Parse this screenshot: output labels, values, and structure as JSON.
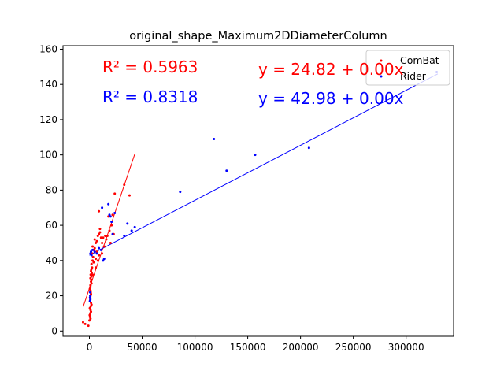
{
  "chart_data": {
    "type": "scatter",
    "title": "original_shape_Maximum2DDiameterColumn",
    "xlabel": "",
    "ylabel": "",
    "xlim": [
      -25000,
      345000
    ],
    "ylim": [
      -3,
      162
    ],
    "xticks": [
      0,
      50000,
      100000,
      150000,
      200000,
      250000,
      300000
    ],
    "xtick_labels": [
      "0",
      "50000",
      "100000",
      "150000",
      "200000",
      "250000",
      "300000"
    ],
    "yticks": [
      0,
      20,
      40,
      60,
      80,
      100,
      120,
      140,
      160
    ],
    "ytick_labels": [
      "0",
      "20",
      "40",
      "60",
      "80",
      "100",
      "120",
      "140",
      "160"
    ],
    "grid": false,
    "legend_position": "top-right",
    "series": [
      {
        "name": "ComBat",
        "color": "#ff0000",
        "points": [
          [
            -6000,
            5
          ],
          [
            -4000,
            4
          ],
          [
            -1000,
            3
          ],
          [
            0,
            6
          ],
          [
            500,
            8
          ],
          [
            800,
            10
          ],
          [
            1000,
            12
          ],
          [
            1200,
            14
          ],
          [
            1500,
            16
          ],
          [
            800,
            18
          ],
          [
            1000,
            20
          ],
          [
            1200,
            22
          ],
          [
            500,
            24
          ],
          [
            1000,
            26
          ],
          [
            1500,
            28
          ],
          [
            1000,
            30
          ],
          [
            2000,
            31
          ],
          [
            1200,
            32
          ],
          [
            1500,
            34
          ],
          [
            2500,
            36
          ],
          [
            2000,
            38
          ],
          [
            3000,
            40
          ],
          [
            3500,
            42
          ],
          [
            2500,
            44
          ],
          [
            4000,
            46
          ],
          [
            5000,
            47
          ],
          [
            3000,
            48
          ],
          [
            6000,
            50
          ],
          [
            7000,
            51
          ],
          [
            5000,
            52
          ],
          [
            8000,
            54
          ],
          [
            9000,
            55
          ],
          [
            10000,
            56
          ],
          [
            11000,
            53
          ],
          [
            12000,
            50
          ],
          [
            7000,
            45
          ],
          [
            9000,
            43
          ],
          [
            6000,
            41
          ],
          [
            4000,
            39
          ],
          [
            2000,
            27
          ],
          [
            1000,
            25
          ],
          [
            2000,
            15
          ],
          [
            1500,
            11
          ],
          [
            500,
            9
          ],
          [
            1000,
            7
          ],
          [
            15000,
            54
          ],
          [
            16000,
            52
          ],
          [
            19000,
            57
          ],
          [
            21000,
            60
          ],
          [
            18000,
            65
          ],
          [
            22000,
            66
          ],
          [
            9000,
            68
          ],
          [
            24000,
            78
          ],
          [
            33000,
            83
          ],
          [
            38000,
            77
          ],
          [
            23000,
            55
          ],
          [
            20000,
            50
          ],
          [
            14000,
            48
          ],
          [
            12000,
            44
          ],
          [
            8000,
            40
          ],
          [
            6000,
            36
          ],
          [
            3000,
            32
          ],
          [
            2000,
            29
          ],
          [
            1000,
            23
          ],
          [
            1500,
            21
          ],
          [
            800,
            19
          ],
          [
            600,
            17
          ],
          [
            400,
            13
          ],
          [
            300,
            9
          ],
          [
            1800,
            35
          ],
          [
            2200,
            33
          ],
          [
            10000,
            58
          ],
          [
            13000,
            53
          ],
          [
            17000,
            54
          ]
        ],
        "fit_line": [
          [
            -6000,
            13.6
          ],
          [
            43000,
            100.5
          ]
        ],
        "r2_text": "R² = 0.5963",
        "equation_text": "y = 24.82 + 0.00x"
      },
      {
        "name": "Rider",
        "color": "#0000ff",
        "points": [
          [
            500,
            17
          ],
          [
            600,
            19
          ],
          [
            800,
            20
          ],
          [
            700,
            22
          ],
          [
            900,
            18
          ],
          [
            1000,
            44
          ],
          [
            1500,
            45
          ],
          [
            2000,
            43
          ],
          [
            3000,
            46
          ],
          [
            5000,
            45
          ],
          [
            7000,
            44
          ],
          [
            9000,
            47
          ],
          [
            11000,
            46
          ],
          [
            13000,
            40
          ],
          [
            14000,
            41
          ],
          [
            12000,
            70
          ],
          [
            18000,
            72
          ],
          [
            19000,
            66
          ],
          [
            20000,
            65
          ],
          [
            21000,
            62
          ],
          [
            22000,
            55
          ],
          [
            24000,
            67
          ],
          [
            33000,
            54
          ],
          [
            36000,
            61
          ],
          [
            40000,
            57
          ],
          [
            43000,
            59
          ],
          [
            86000,
            79
          ],
          [
            118000,
            109
          ],
          [
            130000,
            91
          ],
          [
            157000,
            100
          ],
          [
            208000,
            104
          ],
          [
            329000,
            147
          ]
        ],
        "fit_line": [
          [
            0,
            43
          ],
          [
            330000,
            146
          ]
        ],
        "r2_text": "R² = 0.8318",
        "equation_text": "y = 42.98 + 0.00x"
      }
    ]
  }
}
